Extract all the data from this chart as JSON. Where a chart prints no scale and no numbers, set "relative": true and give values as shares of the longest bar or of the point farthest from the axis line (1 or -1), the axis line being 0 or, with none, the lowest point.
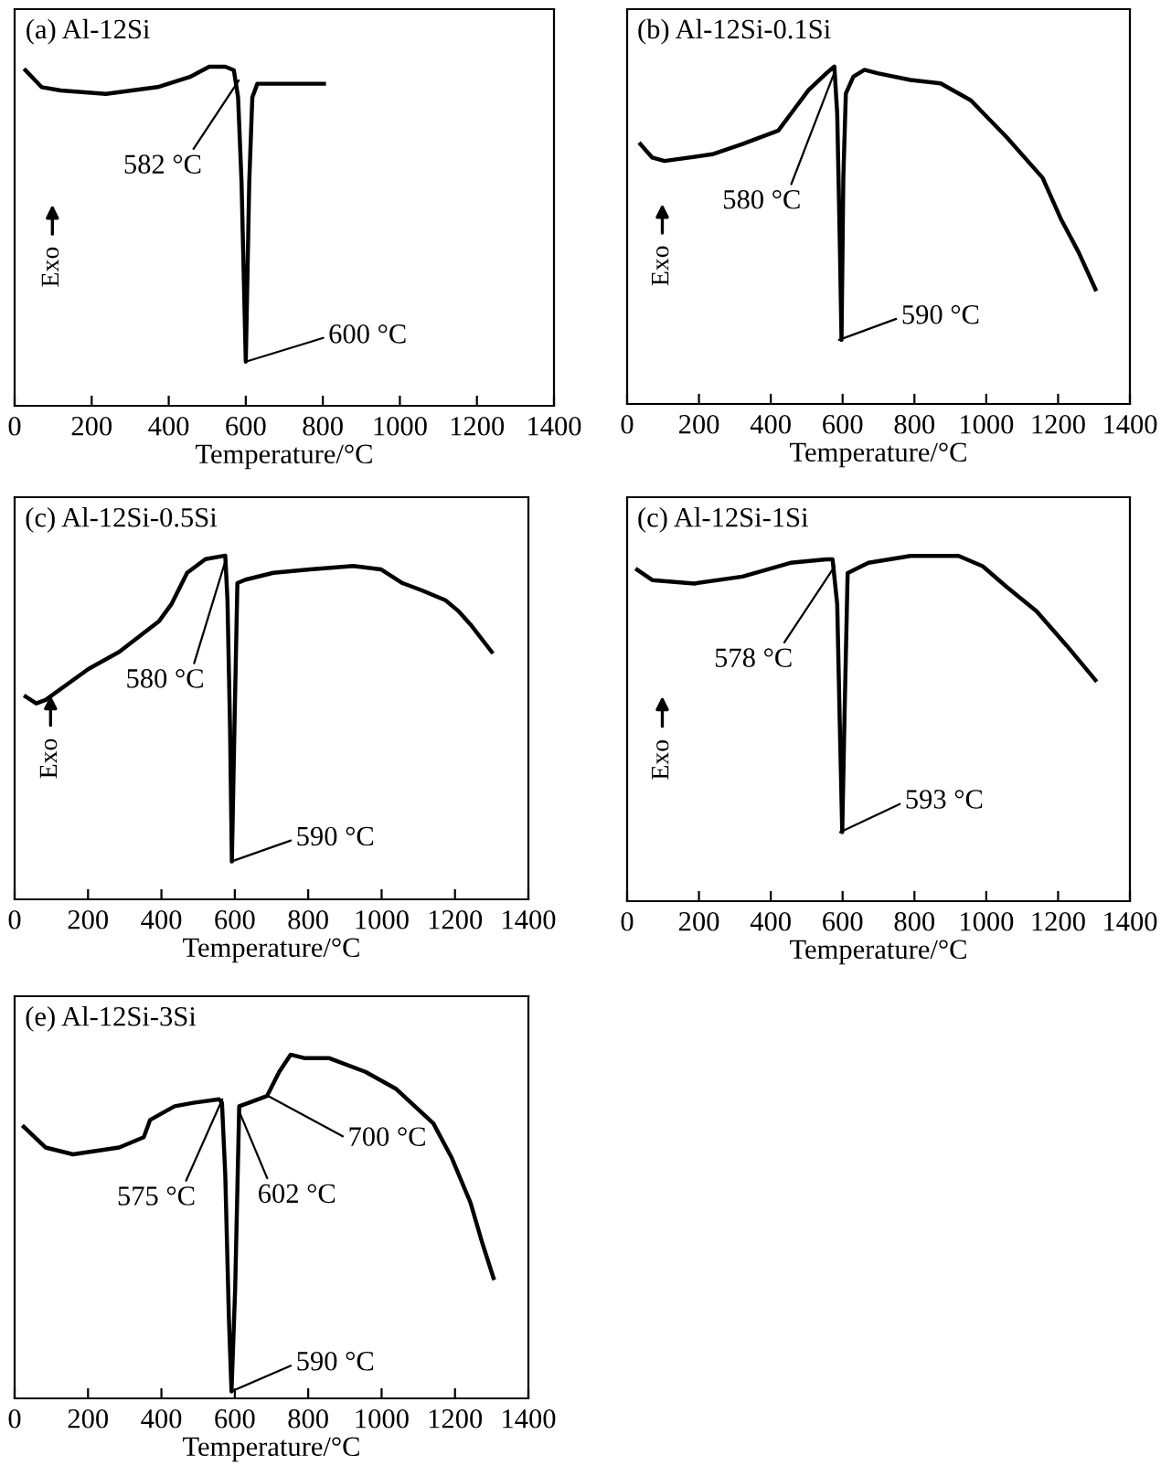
{
  "chart_data": [
    {
      "type": "line",
      "title": "(a) Al-12Si",
      "xlabel": "Temperature/°C",
      "ylabel": "Exo",
      "relative": true,
      "xlim": [
        0,
        1400
      ],
      "xticks": [
        0,
        200,
        400,
        600,
        800,
        1000,
        1200,
        1400
      ],
      "series": [
        {
          "color": "#000000",
          "x": [
            28,
            70,
            120,
            237,
            371,
            455,
            505,
            547,
            569,
            580,
            589,
            600,
            609,
            617,
            630,
            706,
            803
          ],
          "values": [
            0.99,
            0.94,
            0.93,
            0.92,
            0.94,
            0.97,
            1.0,
            1.0,
            0.99,
            0.91,
            0.66,
            0.13,
            0.66,
            0.91,
            0.95,
            0.95,
            0.95
          ]
        }
      ],
      "annotations": [
        {
          "text": "582 °C",
          "x": 582,
          "y": 0.96
        },
        {
          "text": "600 °C",
          "x": 600,
          "y": 0.13
        }
      ]
    },
    {
      "type": "line",
      "title": "(b) Al-12Si-0.1Si",
      "xlabel": "Temperature/°C",
      "ylabel": "Exo",
      "relative": true,
      "xlim": [
        0,
        1400
      ],
      "xticks": [
        0,
        200,
        400,
        600,
        800,
        1000,
        1200,
        1400
      ],
      "series": [
        {
          "color": "#000000",
          "x": [
            37,
            70,
            104,
            237,
            321,
            421,
            463,
            505,
            555,
            577,
            585,
            592,
            597,
            602,
            609,
            630,
            661,
            697,
            789,
            873,
            957,
            1057,
            1157,
            1207,
            1257,
            1304
          ],
          "values": [
            0.77,
            0.73,
            0.72,
            0.74,
            0.77,
            0.81,
            0.87,
            0.93,
            0.98,
            1.0,
            0.86,
            0.49,
            0.19,
            0.67,
            0.92,
            0.97,
            0.99,
            0.98,
            0.96,
            0.95,
            0.9,
            0.79,
            0.67,
            0.55,
            0.45,
            0.34
          ]
        }
      ],
      "annotations": [
        {
          "text": "580 °C",
          "x": 580,
          "y": 0.99
        },
        {
          "text": "590 °C",
          "x": 590,
          "y": 0.19
        }
      ]
    },
    {
      "type": "line",
      "title": "(c) Al-12Si-0.5Si",
      "xlabel": "Temperature/°C",
      "ylabel": "Exo",
      "relative": true,
      "xlim": [
        0,
        1400
      ],
      "xticks": [
        0,
        200,
        400,
        600,
        800,
        1000,
        1200,
        1400
      ],
      "series": [
        {
          "color": "#000000",
          "x": [
            30,
            59,
            84,
            201,
            285,
            394,
            428,
            470,
            520,
            574,
            580,
            587,
            592,
            599,
            607,
            629,
            705,
            805,
            923,
            998,
            1057,
            1107,
            1174,
            1208,
            1242,
            1300
          ],
          "values": [
            0.59,
            0.57,
            0.58,
            0.67,
            0.72,
            0.81,
            0.86,
            0.95,
            0.99,
            1.0,
            0.87,
            0.5,
            0.11,
            0.5,
            0.92,
            0.93,
            0.95,
            0.96,
            0.97,
            0.96,
            0.92,
            0.9,
            0.87,
            0.84,
            0.8,
            0.72
          ]
        }
      ],
      "annotations": [
        {
          "text": "580 °C",
          "x": 576,
          "y": 0.99
        },
        {
          "text": "590 °C",
          "x": 590,
          "y": 0.11
        }
      ]
    },
    {
      "type": "line",
      "title": "(c) Al-12Si-1Si",
      "xlabel": "Temperature/°C",
      "ylabel": "Exo",
      "relative": true,
      "xlim": [
        0,
        1400
      ],
      "xticks": [
        0,
        200,
        400,
        600,
        800,
        1000,
        1200,
        1400
      ],
      "series": [
        {
          "color": "#000000",
          "x": [
            28,
            70,
            187,
            321,
            455,
            555,
            572,
            585,
            592,
            599,
            605,
            614,
            672,
            789,
            923,
            990,
            1057,
            1140,
            1224,
            1304
          ],
          "values": [
            0.96,
            0.93,
            0.92,
            0.94,
            0.98,
            0.99,
            0.99,
            0.86,
            0.52,
            0.2,
            0.52,
            0.95,
            0.98,
            1.0,
            1.0,
            0.97,
            0.91,
            0.84,
            0.74,
            0.64
          ]
        }
      ],
      "annotations": [
        {
          "text": "578 °C",
          "x": 578,
          "y": 0.97
        },
        {
          "text": "593 °C",
          "x": 593,
          "y": 0.2
        }
      ]
    },
    {
      "type": "line",
      "title": "(e) Al-12Si-3Si",
      "xlabel": "Temperature/°C",
      "relative": true,
      "xlim": [
        0,
        1400
      ],
      "xticks": [
        0,
        200,
        400,
        600,
        800,
        1000,
        1200,
        1400
      ],
      "series": [
        {
          "color": "#000000",
          "x": [
            25,
            84,
            159,
            285,
            352,
            369,
            436,
            487,
            557,
            565,
            574,
            584,
            591,
            601,
            612,
            638,
            688,
            721,
            752,
            789,
            856,
            956,
            1040,
            1141,
            1191,
            1242,
            1275,
            1305
          ],
          "values": [
            0.79,
            0.73,
            0.71,
            0.73,
            0.76,
            0.81,
            0.85,
            0.86,
            0.87,
            0.86,
            0.65,
            0.23,
            0.02,
            0.32,
            0.85,
            0.86,
            0.88,
            0.95,
            1.0,
            0.99,
            0.99,
            0.95,
            0.9,
            0.8,
            0.7,
            0.57,
            0.45,
            0.35
          ]
        }
      ],
      "annotations": [
        {
          "text": "575 °C",
          "x": 566,
          "y": 0.87
        },
        {
          "text": "602 °C",
          "x": 610,
          "y": 0.84
        },
        {
          "text": "700 °C",
          "x": 690,
          "y": 0.88
        },
        {
          "text": "590 °C",
          "x": 590,
          "y": 0.02
        }
      ]
    }
  ]
}
